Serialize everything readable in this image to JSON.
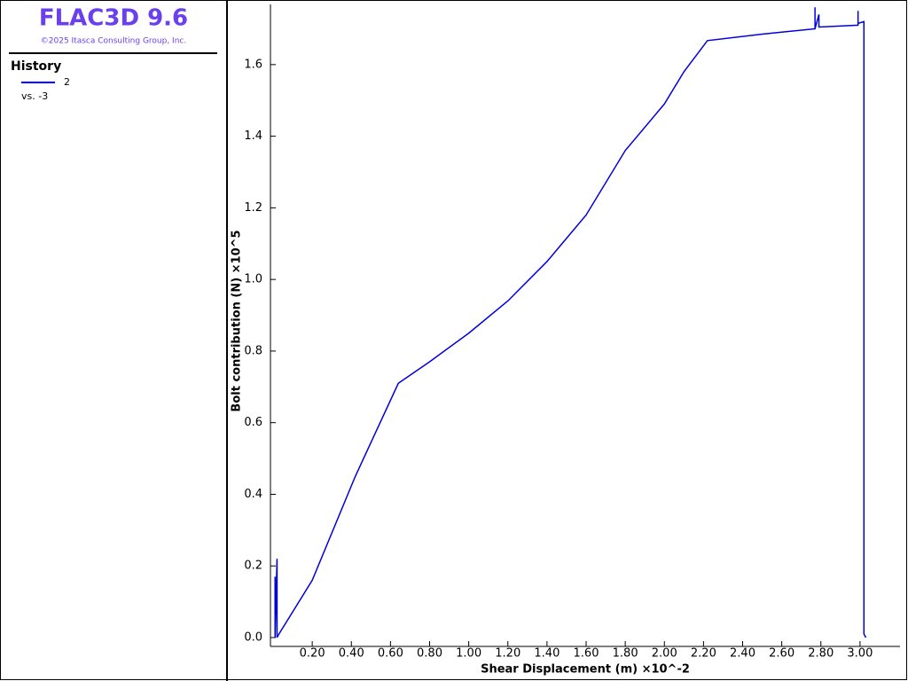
{
  "app": {
    "title": "FLAC3D 9.6",
    "copyright": "©2025 Itasca Consulting Group, Inc."
  },
  "legend": {
    "heading": "History",
    "subtitle": "vs. -3"
  },
  "chart_data": {
    "type": "line",
    "x_label": "Shear Displacement (m)  ×10^-2",
    "y_label": "Bolt contribution (N)  ×10^5",
    "xlim": [
      0,
      3.2
    ],
    "ylim": [
      0,
      1.768
    ],
    "xticks": [
      {
        "value": 0.2,
        "label": "0.20"
      },
      {
        "value": 0.4,
        "label": "0.40"
      },
      {
        "value": 0.6,
        "label": "0.60"
      },
      {
        "value": 0.8,
        "label": "0.80"
      },
      {
        "value": 1.0,
        "label": "1.00"
      },
      {
        "value": 1.2,
        "label": "1.20"
      },
      {
        "value": 1.4,
        "label": "1.40"
      },
      {
        "value": 1.6,
        "label": "1.60"
      },
      {
        "value": 1.8,
        "label": "1.80"
      },
      {
        "value": 2.0,
        "label": "2.00"
      },
      {
        "value": 2.2,
        "label": "2.20"
      },
      {
        "value": 2.4,
        "label": "2.40"
      },
      {
        "value": 2.6,
        "label": "2.60"
      },
      {
        "value": 2.8,
        "label": "2.80"
      },
      {
        "value": 3.0,
        "label": "3.00"
      }
    ],
    "yticks": [
      {
        "value": 0,
        "label": "0.0"
      },
      0.2,
      0.4,
      0.6,
      0.8,
      {
        "value": 1.0,
        "label": "1.0"
      },
      1.2,
      1.4,
      1.6
    ],
    "series": [
      {
        "name": "2",
        "color": "#0000dd",
        "x": [
          0.01,
          0.01,
          0.02,
          0.02,
          0.03,
          0.2,
          0.42,
          0.64,
          0.8,
          1.0,
          1.2,
          1.4,
          1.6,
          1.8,
          2.0,
          2.1,
          2.22,
          2.5,
          2.77,
          2.77,
          2.77,
          2.79,
          2.79,
          2.99,
          2.99,
          2.99,
          3.02,
          3.02,
          3.03
        ],
        "values": [
          0.17,
          0.0,
          0.22,
          0.0,
          0.01,
          0.16,
          0.45,
          0.71,
          0.77,
          0.85,
          0.94,
          1.05,
          1.18,
          1.36,
          1.49,
          1.58,
          1.667,
          1.685,
          1.7,
          1.76,
          1.7,
          1.74,
          1.705,
          1.71,
          1.75,
          1.715,
          1.72,
          0.01,
          0.0
        ]
      }
    ]
  }
}
